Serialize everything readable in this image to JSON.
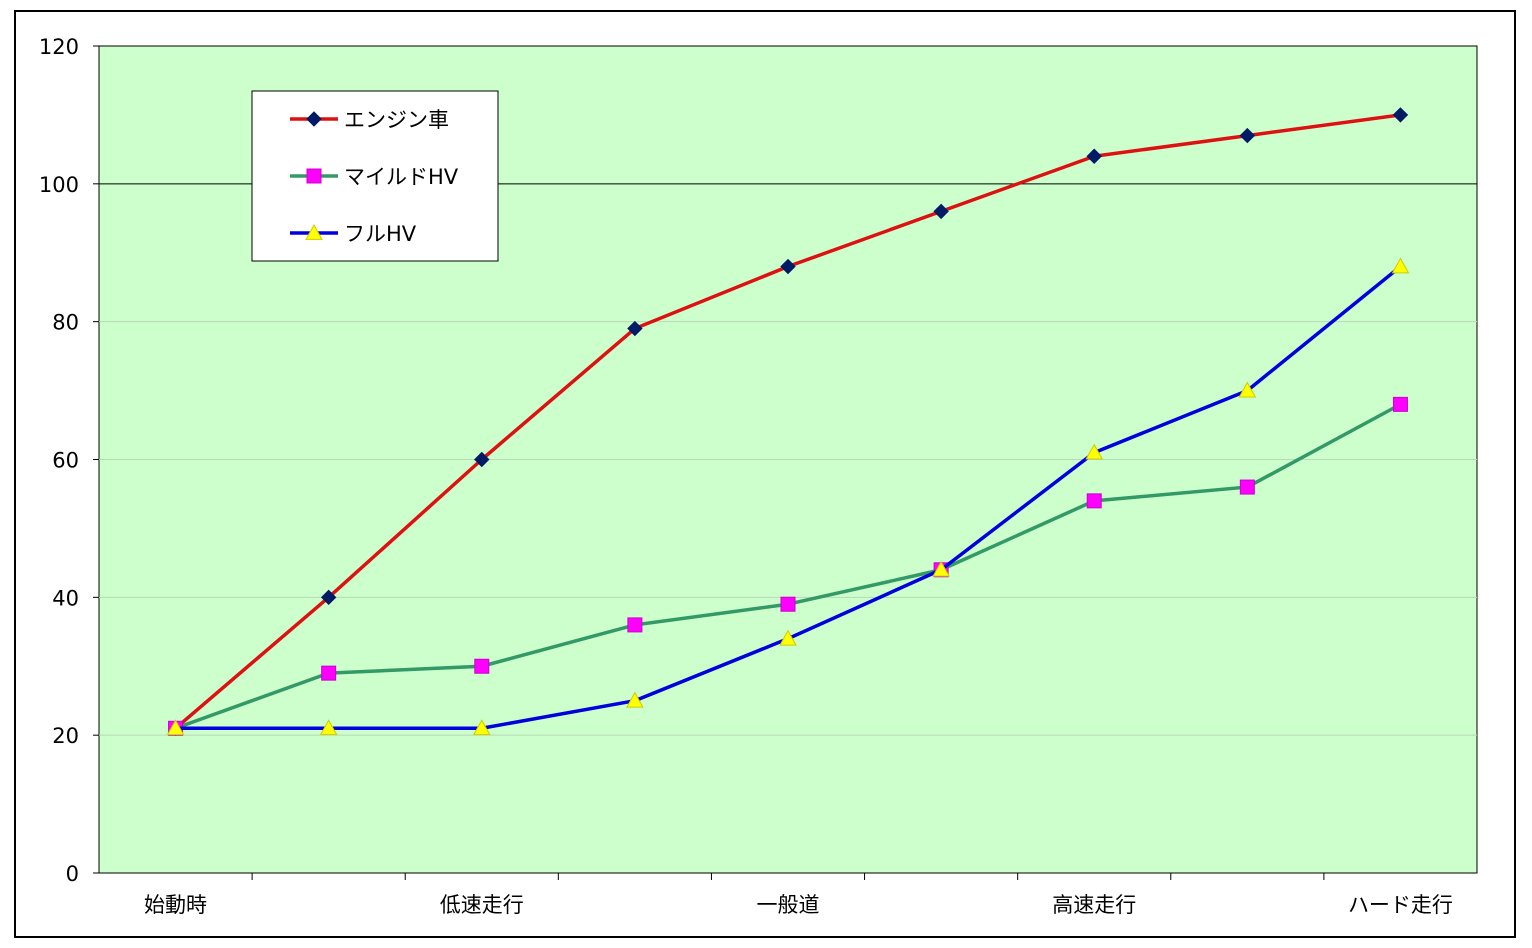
{
  "chart_data": {
    "type": "line",
    "title": "",
    "xlabel": "",
    "ylabel": "",
    "categories": [
      "始動時",
      "",
      "低速走行",
      "",
      "一般道",
      "",
      "高速走行",
      "",
      "ハード走行"
    ],
    "x_tick_labels": [
      "始動時",
      "低速走行",
      "一般道",
      "高速走行",
      "ハード走行"
    ],
    "y_ticks": [
      "0",
      "20",
      "40",
      "60",
      "80",
      "100",
      "120"
    ],
    "ylim": [
      0,
      120
    ],
    "grid": true,
    "legend_position": "top-left",
    "plot_background": "#ccffcc",
    "series": [
      {
        "name": "エンジン車",
        "values": [
          21,
          40,
          60,
          79,
          88,
          96,
          104,
          107,
          110
        ],
        "line_color": "#dd1111",
        "marker": "diamond",
        "marker_color": "#001a66"
      },
      {
        "name": "マイルドHV",
        "values": [
          21,
          29,
          30,
          36,
          39,
          44,
          54,
          56,
          68
        ],
        "line_color": "#339966",
        "marker": "square",
        "marker_color": "#ff00ff"
      },
      {
        "name": "フルHV",
        "values": [
          21,
          21,
          21,
          25,
          34,
          44,
          61,
          70,
          88
        ],
        "line_color": "#0000dd",
        "marker": "triangle",
        "marker_color": "#ffff00"
      }
    ]
  }
}
